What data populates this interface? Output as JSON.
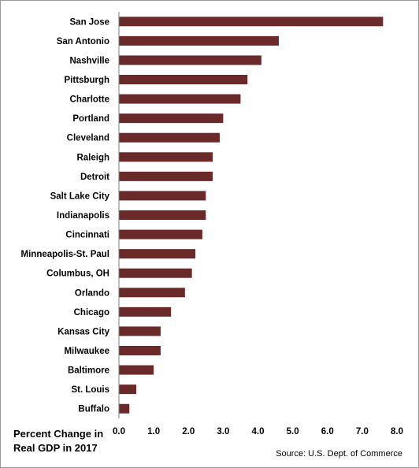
{
  "chart_data": {
    "type": "bar",
    "orientation": "horizontal",
    "categories": [
      "San Jose",
      "San Antonio",
      "Nashville",
      "Pittsburgh",
      "Charlotte",
      "Portland",
      "Cleveland",
      "Raleigh",
      "Detroit",
      "Salt Lake City",
      "Indianapolis",
      "Cincinnati",
      "Minneapolis-St. Paul",
      "Columbus, OH",
      "Orlando",
      "Chicago",
      "Kansas City",
      "Milwaukee",
      "Baltimore",
      "St. Louis",
      "Buffalo"
    ],
    "values": [
      7.6,
      4.6,
      4.1,
      3.7,
      3.5,
      3.0,
      2.9,
      2.7,
      2.7,
      2.5,
      2.5,
      2.4,
      2.2,
      2.1,
      1.9,
      1.5,
      1.2,
      1.2,
      1.0,
      0.5,
      0.3
    ],
    "xlim": [
      0,
      8
    ],
    "xticks": [
      "0.0",
      "1.0",
      "2.0",
      "3.0",
      "4.0",
      "5.0",
      "6.0",
      "7.0",
      "8.0"
    ],
    "xlabel_line1": "Percent Change in",
    "xlabel_line2": "Real GDP in 2017",
    "grid": false,
    "bar_color": "#6b2a2a"
  },
  "source": "Source: U.S. Dept. of Commerce"
}
